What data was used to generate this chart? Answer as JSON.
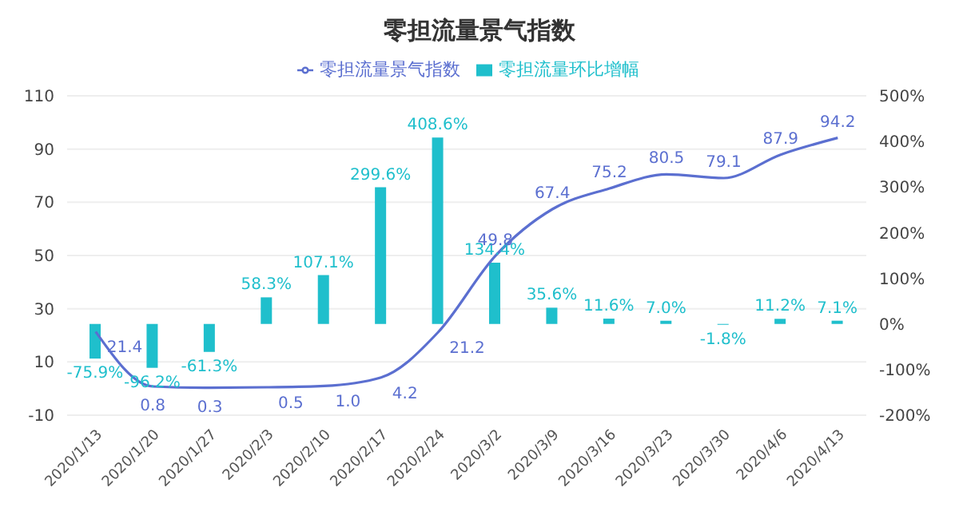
{
  "chart_data": {
    "type": "bar",
    "title": "零担流量景气指数",
    "categories": [
      "2020/1/13",
      "2020/1/20",
      "2020/1/27",
      "2020/2/3",
      "2020/2/10",
      "2020/2/17",
      "2020/2/24",
      "2020/3/2",
      "2020/3/9",
      "2020/3/16",
      "2020/3/23",
      "2020/3/30",
      "2020/4/6",
      "2020/4/13"
    ],
    "series": [
      {
        "name": "零担流量环比增幅",
        "axis": "y2",
        "color": "#1fbfcc",
        "values": [
          -75.9,
          -96.2,
          -61.3,
          58.3,
          107.1,
          299.6,
          408.6,
          134.4,
          35.6,
          11.6,
          7.0,
          -1.8,
          11.2,
          7.1
        ],
        "value_labels": [
          "-75.9%",
          "-96.2%",
          "-61.3%",
          "58.3%",
          "107.1%",
          "299.6%",
          "408.6%",
          "134.4%",
          "35.6%",
          "11.6%",
          "7.0%",
          "-1.8%",
          "11.2%",
          "7.1%"
        ]
      },
      {
        "name": "零担流量景气指数",
        "type": "line",
        "color": "#5b6fd0",
        "values": [
          21.4,
          0.8,
          0.3,
          0.5,
          1.0,
          4.2,
          21.2,
          49.8,
          67.4,
          75.2,
          80.5,
          79.1,
          87.9,
          94.2
        ],
        "value_labels": [
          "21.4",
          "0.8",
          "0.3",
          "0.5",
          "1.0",
          "4.2",
          "21.2",
          "49.8",
          "67.4",
          "75.2",
          "80.5",
          "79.1",
          "87.9",
          "94.2"
        ]
      }
    ],
    "ylim": [
      -10,
      110
    ],
    "yticks": [
      -10,
      10,
      30,
      50,
      70,
      90,
      110
    ],
    "y2lim": [
      -200,
      500
    ],
    "y2ticks": [
      {
        "value": -200,
        "label": "-200%"
      },
      {
        "value": -100,
        "label": "-100%"
      },
      {
        "value": 0,
        "label": "0%"
      },
      {
        "value": 100,
        "label": "100%"
      },
      {
        "value": 200,
        "label": "200%"
      },
      {
        "value": 300,
        "label": "300%"
      },
      {
        "value": 400,
        "label": "400%"
      },
      {
        "value": 500,
        "label": "500%"
      }
    ],
    "grid": "y",
    "legend": "top",
    "marker": "none",
    "line_style": "solid"
  }
}
